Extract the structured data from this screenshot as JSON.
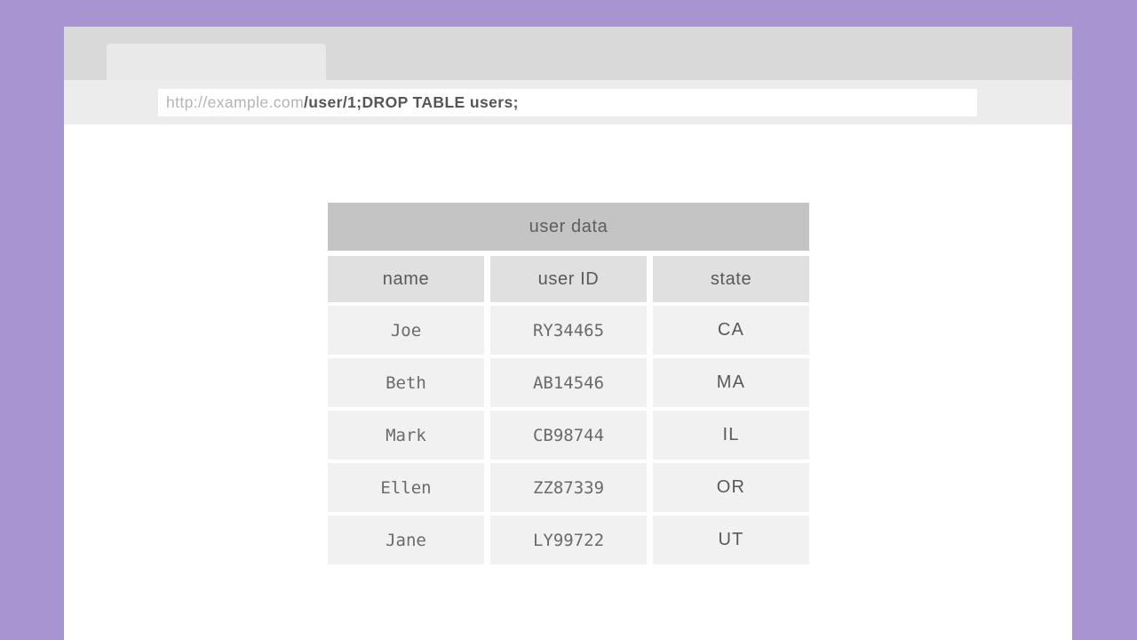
{
  "colors": {
    "frame_purple": "#a794d0",
    "tab_bar_gray": "#d9d9d9",
    "tab_gray": "#e9e9e9",
    "address_bar_gray": "#ececec",
    "table_title_gray": "#c4c4c4",
    "table_header_gray": "#e0e0e0",
    "table_row_gray": "#f1f1f1"
  },
  "browser": {
    "url": {
      "domain": "http://example.com",
      "path": "/user/1;DROP TABLE users;"
    }
  },
  "table": {
    "title": "user data",
    "columns": [
      "name",
      "user ID",
      "state"
    ],
    "rows": [
      {
        "name": "Joe",
        "user_id": "RY34465",
        "state": "CA"
      },
      {
        "name": "Beth",
        "user_id": "AB14546",
        "state": "MA"
      },
      {
        "name": "Mark",
        "user_id": "CB98744",
        "state": "IL"
      },
      {
        "name": "Ellen",
        "user_id": "ZZ87339",
        "state": "OR"
      },
      {
        "name": "Jane",
        "user_id": "LY99722",
        "state": "UT"
      }
    ]
  }
}
